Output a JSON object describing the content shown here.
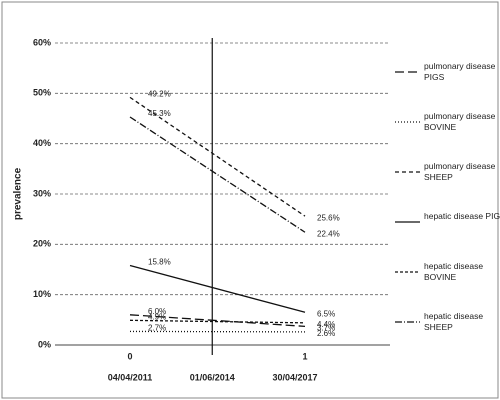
{
  "chart_data": {
    "type": "line",
    "y_label": "prevalence",
    "categories": [
      "0",
      "1"
    ],
    "date_labels": [
      "04/04/2011",
      "30/04/2017"
    ],
    "vline_label": "01/06/2014",
    "ylim": [
      0,
      60
    ],
    "yticks": [
      {
        "value": 0,
        "label": "0%"
      },
      {
        "value": 10,
        "label": "10%"
      },
      {
        "value": 20,
        "label": "20%"
      },
      {
        "value": 30,
        "label": "30%"
      },
      {
        "value": 40,
        "label": "40%"
      },
      {
        "value": 50,
        "label": "50%"
      },
      {
        "value": 60,
        "label": "60%"
      }
    ],
    "grid": true,
    "series": [
      {
        "name": "pulmonary disease PIGS",
        "color": "#111111",
        "dash": "9,4",
        "values": [
          6.0,
          3.7
        ],
        "value_labels": [
          "6.0%",
          "3.7%"
        ]
      },
      {
        "name": "pulmonary disease BOVINE",
        "color": "#111111",
        "dash": "1,2",
        "values": [
          2.7,
          2.6
        ],
        "value_labels": [
          "2.7%",
          "2.6%"
        ]
      },
      {
        "name": "pulmonary disease SHEEP",
        "color": "#111111",
        "dash": "4,3",
        "values": [
          49.2,
          25.6
        ],
        "value_labels": [
          "49.2%",
          "25.6%"
        ]
      },
      {
        "name": "hepatic disease PIGS",
        "color": "#111111",
        "dash": "none",
        "values": [
          15.8,
          6.5
        ],
        "value_labels": [
          "15.8%",
          "6.5%"
        ]
      },
      {
        "name": "hepatic disease BOVINE",
        "color": "#111111",
        "dash": "3,2",
        "values": [
          4.9,
          4.4
        ],
        "value_labels": [
          "4.9%",
          "4.4%"
        ]
      },
      {
        "name": "hepatic disease SHEEP",
        "color": "#111111",
        "dash": "7,2,1,2",
        "values": [
          45.3,
          22.4
        ],
        "value_labels": [
          "45.3%",
          "22.4%"
        ]
      }
    ]
  }
}
